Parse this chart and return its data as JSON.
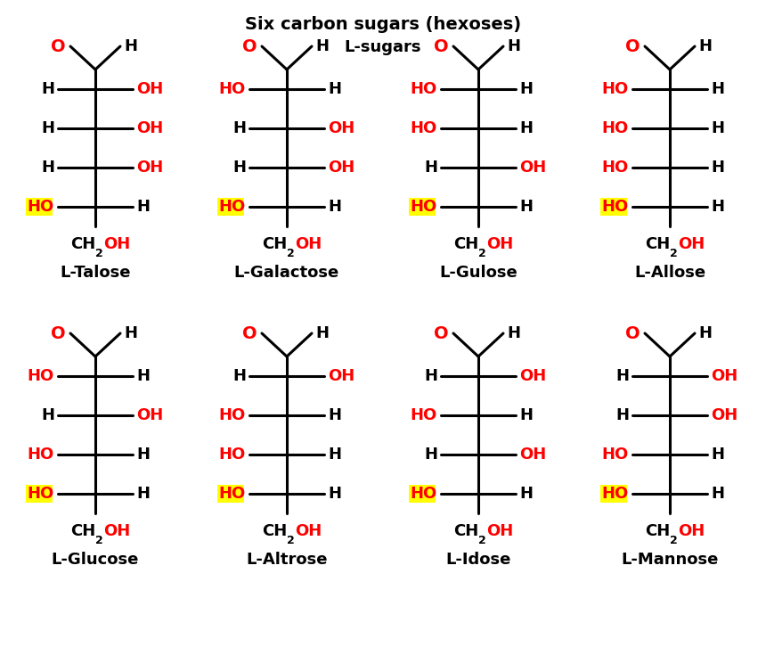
{
  "title": "Six carbon sugars (hexoses)",
  "subtitle": "L-sugars",
  "background": "#ffffff",
  "sugars": [
    {
      "name": "L-Talose",
      "col": 0,
      "row": 0,
      "rows": [
        {
          "left": "H",
          "left_color": "black",
          "left_hl": false,
          "right": "OH",
          "right_color": "red",
          "right_hl": false
        },
        {
          "left": "H",
          "left_color": "black",
          "left_hl": false,
          "right": "OH",
          "right_color": "red",
          "right_hl": false
        },
        {
          "left": "H",
          "left_color": "black",
          "left_hl": false,
          "right": "OH",
          "right_color": "red",
          "right_hl": false
        },
        {
          "left": "HO",
          "left_color": "red",
          "left_hl": true,
          "right": "H",
          "right_color": "black",
          "right_hl": false
        }
      ]
    },
    {
      "name": "L-Galactose",
      "col": 1,
      "row": 0,
      "rows": [
        {
          "left": "HO",
          "left_color": "red",
          "left_hl": false,
          "right": "H",
          "right_color": "black",
          "right_hl": false
        },
        {
          "left": "H",
          "left_color": "black",
          "left_hl": false,
          "right": "OH",
          "right_color": "red",
          "right_hl": false
        },
        {
          "left": "H",
          "left_color": "black",
          "left_hl": false,
          "right": "OH",
          "right_color": "red",
          "right_hl": false
        },
        {
          "left": "HO",
          "left_color": "red",
          "left_hl": true,
          "right": "H",
          "right_color": "black",
          "right_hl": false
        }
      ]
    },
    {
      "name": "L-Gulose",
      "col": 2,
      "row": 0,
      "rows": [
        {
          "left": "HO",
          "left_color": "red",
          "left_hl": false,
          "right": "H",
          "right_color": "black",
          "right_hl": false
        },
        {
          "left": "HO",
          "left_color": "red",
          "left_hl": false,
          "right": "H",
          "right_color": "black",
          "right_hl": false
        },
        {
          "left": "H",
          "left_color": "black",
          "left_hl": false,
          "right": "OH",
          "right_color": "red",
          "right_hl": false
        },
        {
          "left": "HO",
          "left_color": "red",
          "left_hl": true,
          "right": "H",
          "right_color": "black",
          "right_hl": false
        }
      ]
    },
    {
      "name": "L-Allose",
      "col": 3,
      "row": 0,
      "rows": [
        {
          "left": "HO",
          "left_color": "red",
          "left_hl": false,
          "right": "H",
          "right_color": "black",
          "right_hl": false
        },
        {
          "left": "HO",
          "left_color": "red",
          "left_hl": false,
          "right": "H",
          "right_color": "black",
          "right_hl": false
        },
        {
          "left": "HO",
          "left_color": "red",
          "left_hl": false,
          "right": "H",
          "right_color": "black",
          "right_hl": false
        },
        {
          "left": "HO",
          "left_color": "red",
          "left_hl": true,
          "right": "H",
          "right_color": "black",
          "right_hl": false
        }
      ]
    },
    {
      "name": "L-Glucose",
      "col": 0,
      "row": 1,
      "rows": [
        {
          "left": "HO",
          "left_color": "red",
          "left_hl": false,
          "right": "H",
          "right_color": "black",
          "right_hl": false
        },
        {
          "left": "H",
          "left_color": "black",
          "left_hl": false,
          "right": "OH",
          "right_color": "red",
          "right_hl": false
        },
        {
          "left": "HO",
          "left_color": "red",
          "left_hl": false,
          "right": "H",
          "right_color": "black",
          "right_hl": false
        },
        {
          "left": "HO",
          "left_color": "red",
          "left_hl": true,
          "right": "H",
          "right_color": "black",
          "right_hl": false
        }
      ]
    },
    {
      "name": "L-Altrose",
      "col": 1,
      "row": 1,
      "rows": [
        {
          "left": "H",
          "left_color": "black",
          "left_hl": false,
          "right": "OH",
          "right_color": "red",
          "right_hl": false
        },
        {
          "left": "HO",
          "left_color": "red",
          "left_hl": false,
          "right": "H",
          "right_color": "black",
          "right_hl": false
        },
        {
          "left": "HO",
          "left_color": "red",
          "left_hl": false,
          "right": "H",
          "right_color": "black",
          "right_hl": false
        },
        {
          "left": "HO",
          "left_color": "red",
          "left_hl": true,
          "right": "H",
          "right_color": "black",
          "right_hl": false
        }
      ]
    },
    {
      "name": "L-Idose",
      "col": 2,
      "row": 1,
      "rows": [
        {
          "left": "H",
          "left_color": "black",
          "left_hl": false,
          "right": "OH",
          "right_color": "red",
          "right_hl": false
        },
        {
          "left": "HO",
          "left_color": "red",
          "left_hl": false,
          "right": "H",
          "right_color": "black",
          "right_hl": false
        },
        {
          "left": "H",
          "left_color": "black",
          "left_hl": false,
          "right": "OH",
          "right_color": "red",
          "right_hl": false
        },
        {
          "left": "HO",
          "left_color": "red",
          "left_hl": true,
          "right": "H",
          "right_color": "black",
          "right_hl": false
        }
      ]
    },
    {
      "name": "L-Mannose",
      "col": 3,
      "row": 1,
      "rows": [
        {
          "left": "H",
          "left_color": "black",
          "left_hl": false,
          "right": "OH",
          "right_color": "red",
          "right_hl": false
        },
        {
          "left": "H",
          "left_color": "black",
          "left_hl": false,
          "right": "OH",
          "right_color": "red",
          "right_hl": false
        },
        {
          "left": "HO",
          "left_color": "red",
          "left_hl": false,
          "right": "H",
          "right_color": "black",
          "right_hl": false
        },
        {
          "left": "HO",
          "left_color": "red",
          "left_hl": true,
          "right": "H",
          "right_color": "black",
          "right_hl": false
        }
      ]
    }
  ]
}
